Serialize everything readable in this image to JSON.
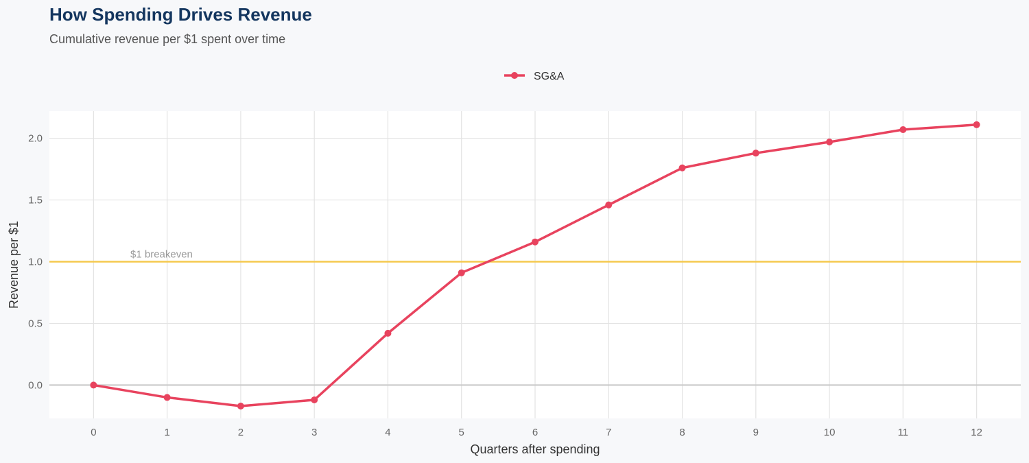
{
  "chart_data": {
    "type": "line",
    "title": "How Spending Drives Revenue",
    "subtitle": "Cumulative revenue per $1 spent over time",
    "xlabel": "Quarters after spending",
    "ylabel": "Revenue per $1",
    "x": [
      0,
      1,
      2,
      3,
      4,
      5,
      6,
      7,
      8,
      9,
      10,
      11,
      12
    ],
    "series": [
      {
        "name": "SG&A",
        "color": "#e8435e",
        "values": [
          0.0,
          -0.1,
          -0.17,
          -0.12,
          0.42,
          0.91,
          1.16,
          1.46,
          1.76,
          1.88,
          1.97,
          2.07,
          2.11
        ]
      }
    ],
    "xlim": [
      -0.6,
      12.6
    ],
    "ylim": [
      -0.27,
      2.22
    ],
    "xticks": [
      "0",
      "1",
      "2",
      "3",
      "4",
      "5",
      "6",
      "7",
      "8",
      "9",
      "10",
      "11",
      "12"
    ],
    "yticks": [
      "0.0",
      "0.5",
      "1.0",
      "1.5",
      "2.0"
    ],
    "reference_line": {
      "y": 1.0,
      "label": "$1 breakeven",
      "color": "#f5c94e"
    },
    "grid": true,
    "legend": "top-center"
  }
}
